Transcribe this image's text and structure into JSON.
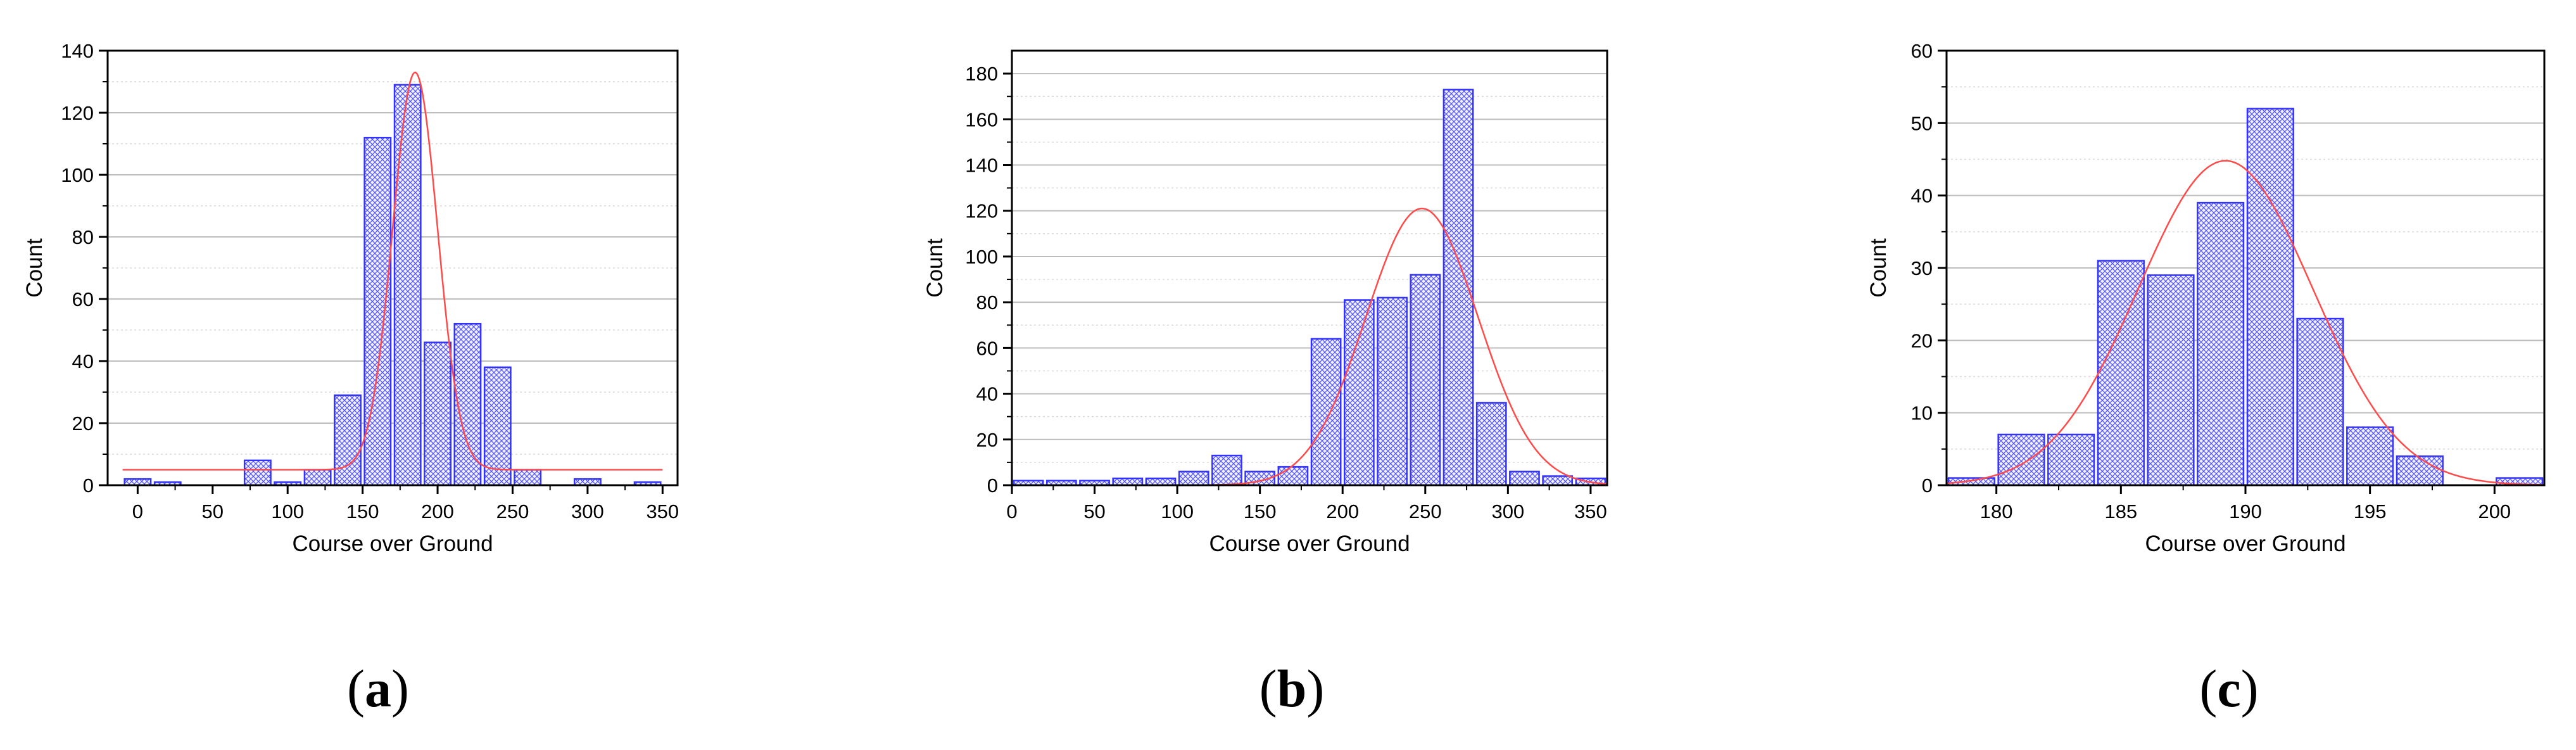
{
  "chart_data": [
    {
      "type": "bar",
      "panel_label": "a",
      "xlabel": "Course over Ground",
      "ylabel": "Count",
      "xlim": [
        -20,
        360
      ],
      "ylim": [
        0,
        140
      ],
      "xticks": [
        0,
        50,
        100,
        150,
        200,
        250,
        300,
        350
      ],
      "yticks": [
        0,
        20,
        40,
        60,
        80,
        100,
        120,
        140
      ],
      "bin_width": 20,
      "bins": [
        0,
        20,
        40,
        60,
        80,
        100,
        120,
        140,
        160,
        180,
        200,
        220,
        240,
        260,
        280,
        300,
        320,
        340
      ],
      "values": [
        2,
        1,
        0,
        0,
        8,
        1,
        5,
        29,
        112,
        129,
        46,
        52,
        38,
        5,
        0,
        2,
        0,
        1
      ],
      "fit": {
        "type": "gaussian",
        "baseline": 5,
        "amplitude": 128,
        "mean": 185,
        "sigma": 15
      },
      "bar_color": "#3333ff",
      "fit_color": "#ff4a4a",
      "grid": true
    },
    {
      "type": "bar",
      "panel_label": "b",
      "xlabel": "Course over Ground",
      "ylabel": "Count",
      "xlim": [
        0,
        360
      ],
      "ylim": [
        0,
        190
      ],
      "xticks": [
        0,
        50,
        100,
        150,
        200,
        250,
        300,
        350
      ],
      "yticks": [
        0,
        20,
        40,
        60,
        80,
        100,
        120,
        140,
        160,
        180
      ],
      "bin_width": 20,
      "bins": [
        10,
        30,
        50,
        70,
        90,
        110,
        130,
        150,
        170,
        190,
        210,
        230,
        250,
        270,
        290,
        310,
        330,
        350
      ],
      "values": [
        2,
        2,
        2,
        3,
        3,
        6,
        13,
        6,
        8,
        64,
        81,
        82,
        92,
        173,
        36,
        6,
        4,
        3
      ],
      "fit": {
        "type": "gaussian",
        "baseline": 0,
        "amplitude": 121,
        "mean": 248,
        "sigma": 34
      },
      "bar_color": "#3333ff",
      "fit_color": "#ff4a4a",
      "grid": true
    },
    {
      "type": "bar",
      "panel_label": "c",
      "xlabel": "Course over Ground",
      "ylabel": "Count",
      "xlim": [
        178,
        202
      ],
      "ylim": [
        0,
        60
      ],
      "xticks": [
        180,
        185,
        190,
        195,
        200
      ],
      "yticks": [
        0,
        10,
        20,
        30,
        40,
        50,
        60
      ],
      "bin_width": 2,
      "bins": [
        179,
        181,
        183,
        185,
        187,
        189,
        191,
        193,
        195,
        197,
        199,
        201
      ],
      "values": [
        1,
        7,
        7,
        31,
        29,
        39,
        52,
        23,
        8,
        4,
        0,
        1
      ],
      "fit": {
        "type": "gaussian",
        "baseline": 0,
        "amplitude": 44.8,
        "mean": 189.2,
        "sigma": 3.5
      },
      "bar_color": "#3333ff",
      "fit_color": "#ff4a4a",
      "grid": true
    }
  ]
}
